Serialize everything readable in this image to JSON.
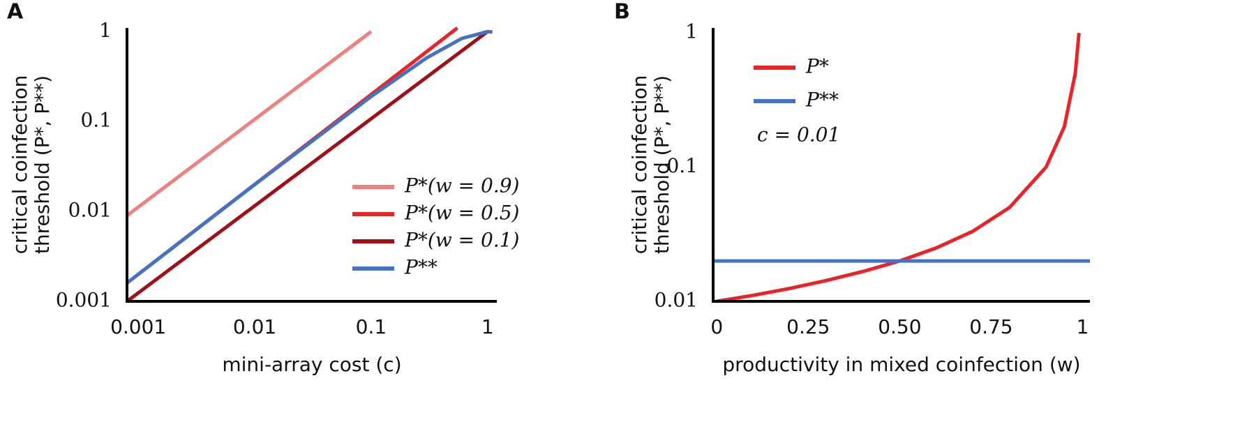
{
  "chart_data": [
    {
      "type": "line",
      "panel_label": "A",
      "xlabel": "mini-array cost (c)",
      "ylabel": [
        "critical coinfection",
        "threshold (P*, P**)"
      ],
      "xscale": "log",
      "yscale": "log",
      "xlim": [
        0.0008,
        1.2
      ],
      "ylim": [
        0.001,
        1.1
      ],
      "xticks": [
        0.001,
        0.01,
        0.1,
        1
      ],
      "yticks": [
        0.001,
        0.01,
        0.1,
        1
      ],
      "grid": false,
      "legend": "lower right",
      "series": [
        {
          "name": "P*(w = 0.9)",
          "color": "#f08080",
          "x": [
            0.0008,
            0.1
          ],
          "values": [
            0.009,
            1
          ]
        },
        {
          "name": "P*(w = 0.5)",
          "color": "#e8242a",
          "x": [
            0.0008,
            0.55
          ],
          "values": [
            0.0016,
            1.1
          ]
        },
        {
          "name": "P*(w = 0.1)",
          "color": "#a01018",
          "x": [
            0.0008,
            1
          ],
          "values": [
            0.001,
            1
          ]
        },
        {
          "name": "P**",
          "color": "#4472c4",
          "x": [
            0.0008,
            0.001,
            0.01,
            0.1,
            0.3,
            0.6,
            1,
            1.1
          ],
          "values": [
            0.0016,
            0.002,
            0.0199,
            0.19,
            0.51,
            0.84,
            1,
            0.99
          ]
        }
      ]
    },
    {
      "type": "line",
      "panel_label": "B",
      "xlabel": "productivity in mixed coinfection  (w)",
      "ylabel": [
        "critical coinfection",
        "threshold (P*, P**)"
      ],
      "xscale": "linear",
      "yscale": "log",
      "xlim": [
        -0.01,
        1.02
      ],
      "ylim": [
        0.01,
        1.09
      ],
      "xticks": [
        0,
        0.25,
        {
          "value": 0.5,
          "label": "0.50"
        },
        0.75,
        1
      ],
      "yticks": [
        0.01,
        0.1,
        1
      ],
      "grid": false,
      "legend": "upper left",
      "annotations": [
        "c = 0.01"
      ],
      "series": [
        {
          "name": "P*",
          "color": "#e8242a",
          "x": [
            0,
            0.1,
            0.2,
            0.3,
            0.4,
            0.5,
            0.6,
            0.7,
            0.8,
            0.9,
            0.95,
            0.98,
            0.99
          ],
          "values": [
            0.01,
            0.0111,
            0.0125,
            0.0143,
            0.0167,
            0.02,
            0.025,
            0.0333,
            0.05,
            0.1,
            0.2,
            0.5,
            1
          ]
        },
        {
          "name": "P**",
          "color": "#4472c4",
          "x": [
            -0.01,
            1.02
          ],
          "values": [
            0.02,
            0.02
          ]
        }
      ]
    }
  ]
}
